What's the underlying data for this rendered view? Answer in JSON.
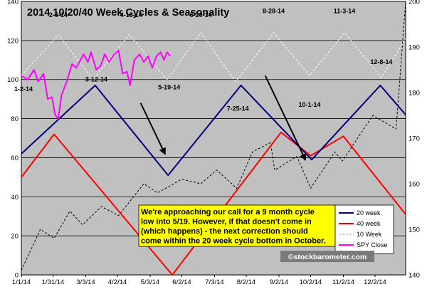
{
  "chart_data": {
    "type": "line",
    "title": "2014 10/20/40 Week Cycles & Seasonality",
    "x_range": [
      "2014-01-01",
      "2014-12-31"
    ],
    "x_ticks": [
      "1/1/14",
      "1/31/14",
      "3/3/14",
      "4/2/14",
      "5/3/14",
      "6/2/14",
      "7/3/14",
      "8/2/14",
      "9/2/14",
      "10/2/14",
      "11/2/14",
      "12/2/14"
    ],
    "y_left": {
      "min": 0,
      "max": 140,
      "ticks": [
        0,
        20,
        40,
        60,
        80,
        100,
        120,
        140
      ]
    },
    "y_right": {
      "min": 140,
      "max": 200,
      "ticks": [
        140,
        150,
        160,
        170,
        180,
        190,
        200
      ]
    },
    "grid": true,
    "background": "#c0c0c0",
    "legend_position": "bottom-right",
    "legend": [
      "20 week",
      "40 week",
      "10 Week",
      "SPY Close"
    ],
    "series": [
      {
        "name": "20 week",
        "axis": "left",
        "color": "#00007a",
        "style": "solid",
        "width": 2,
        "points": [
          [
            "2014-01-01",
            62
          ],
          [
            "2014-03-12",
            97
          ],
          [
            "2014-05-20",
            51
          ],
          [
            "2014-07-28",
            97
          ],
          [
            "2014-10-03",
            59
          ],
          [
            "2014-12-07",
            97
          ],
          [
            "2014-12-31",
            82
          ]
        ]
      },
      {
        "name": "40 week",
        "axis": "left",
        "color": "#ff0000",
        "style": "solid",
        "width": 2,
        "points": [
          [
            "2014-01-01",
            50
          ],
          [
            "2014-02-01",
            72
          ],
          [
            "2014-05-24",
            0
          ],
          [
            "2014-09-04",
            73
          ],
          [
            "2014-10-02",
            61
          ],
          [
            "2014-11-02",
            71
          ],
          [
            "2014-12-31",
            31
          ]
        ]
      },
      {
        "name": "10 Week",
        "axis": "left",
        "color": "#ffffff",
        "style": "dashed",
        "width": 1,
        "points": [
          [
            "2014-01-01",
            102
          ],
          [
            "2014-02-05",
            123
          ],
          [
            "2014-03-10",
            100
          ],
          [
            "2014-04-13",
            123
          ],
          [
            "2014-05-19",
            100
          ],
          [
            "2014-06-20",
            124
          ],
          [
            "2014-07-23",
            99
          ],
          [
            "2014-08-28",
            124
          ],
          [
            "2014-10-01",
            102
          ],
          [
            "2014-11-03",
            124
          ],
          [
            "2014-12-08",
            101
          ],
          [
            "2014-12-31",
            121
          ]
        ]
      },
      {
        "name": "SPY Close",
        "axis": "left",
        "color": "#ff00ff",
        "style": "solid",
        "width": 2,
        "points": [
          [
            "2014-01-01",
            102
          ],
          [
            "2014-01-07",
            100
          ],
          [
            "2014-01-13",
            105
          ],
          [
            "2014-01-17",
            99
          ],
          [
            "2014-01-22",
            103
          ],
          [
            "2014-01-26",
            90
          ],
          [
            "2014-01-30",
            91
          ],
          [
            "2014-02-02",
            82
          ],
          [
            "2014-02-05",
            80
          ],
          [
            "2014-02-08",
            92
          ],
          [
            "2014-02-13",
            99
          ],
          [
            "2014-02-18",
            108
          ],
          [
            "2014-02-22",
            106
          ],
          [
            "2014-02-26",
            110
          ],
          [
            "2014-03-01",
            113
          ],
          [
            "2014-03-05",
            109
          ],
          [
            "2014-03-08",
            114
          ],
          [
            "2014-03-13",
            105
          ],
          [
            "2014-03-17",
            107
          ],
          [
            "2014-03-21",
            113
          ],
          [
            "2014-03-25",
            109
          ],
          [
            "2014-03-30",
            113
          ],
          [
            "2014-04-03",
            115
          ],
          [
            "2014-04-07",
            103
          ],
          [
            "2014-04-11",
            104
          ],
          [
            "2014-04-14",
            97
          ],
          [
            "2014-04-18",
            110
          ],
          [
            "2014-04-23",
            113
          ],
          [
            "2014-04-27",
            109
          ],
          [
            "2014-05-01",
            112
          ],
          [
            "2014-05-05",
            106
          ],
          [
            "2014-05-09",
            112
          ],
          [
            "2014-05-13",
            114
          ],
          [
            "2014-05-16",
            110
          ],
          [
            "2014-05-19",
            114
          ],
          [
            "2014-05-22",
            112
          ]
        ]
      },
      {
        "name": "Seasonality",
        "axis": "right",
        "color": "#000000",
        "style": "dashed",
        "width": 1,
        "points": [
          [
            "2014-01-01",
            141
          ],
          [
            "2014-01-19",
            150
          ],
          [
            "2014-02-01",
            148
          ],
          [
            "2014-02-16",
            154
          ],
          [
            "2014-02-28",
            151
          ],
          [
            "2014-03-18",
            155
          ],
          [
            "2014-04-03",
            153
          ],
          [
            "2014-04-27",
            160
          ],
          [
            "2014-05-10",
            158
          ],
          [
            "2014-06-02",
            161
          ],
          [
            "2014-06-20",
            160
          ],
          [
            "2014-07-05",
            163
          ],
          [
            "2014-07-24",
            159
          ],
          [
            "2014-08-08",
            167
          ],
          [
            "2014-08-25",
            169
          ],
          [
            "2014-08-29",
            163
          ],
          [
            "2014-09-19",
            166
          ],
          [
            "2014-10-02",
            159
          ],
          [
            "2014-10-25",
            167
          ],
          [
            "2014-11-01",
            165
          ],
          [
            "2014-11-30",
            175
          ],
          [
            "2014-12-22",
            172
          ],
          [
            "2014-12-31",
            200
          ]
        ]
      }
    ],
    "annotations": [
      {
        "text": "2-5-14",
        "date": "2014-02-05",
        "y": 132
      },
      {
        "text": "4-15-14",
        "date": "2014-04-15",
        "y": 132
      },
      {
        "text": "6-20-14",
        "date": "2014-06-20",
        "y": 132
      },
      {
        "text": "8-28-14",
        "date": "2014-08-28",
        "y": 134
      },
      {
        "text": "11-3-14",
        "date": "2014-11-03",
        "y": 134
      },
      {
        "text": "12-8-14",
        "date": "2014-12-08",
        "y": 108
      },
      {
        "text": "3-12-14",
        "date": "2014-03-13",
        "y": 99
      },
      {
        "text": "1-2-14",
        "date": "2014-01-03",
        "y": 94
      },
      {
        "text": "5-19-14",
        "date": "2014-05-21",
        "y": 95
      },
      {
        "text": "7-25-14",
        "date": "2014-07-25",
        "y": 84
      },
      {
        "text": "10-1-14",
        "date": "2014-10-01",
        "y": 86
      }
    ],
    "arrows": [
      {
        "from": [
          "2014-04-24",
          88
        ],
        "to": [
          "2014-05-17",
          62
        ]
      },
      {
        "from": [
          "2014-08-20",
          102
        ],
        "to": [
          "2014-09-27",
          59
        ]
      }
    ],
    "callout": {
      "lines": [
        "We're approaching our call for a 9 month cycle",
        "low into 5/19.  However, if that doesn't come in",
        "(which happens) - the next correction should",
        "come within the 20 week cycle bottom in October."
      ],
      "background": "#ffff00"
    },
    "watermark": "©stockbarometer.com"
  }
}
